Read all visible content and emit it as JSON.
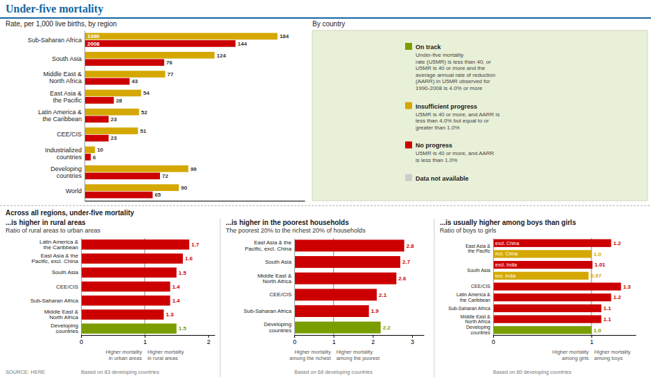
{
  "chart_data": [
    {
      "type": "bar",
      "orientation": "horizontal",
      "title": "Under-five mortality",
      "subtitle": "Rate, per 1,000 live births, by region",
      "categories": [
        "Sub-Saharan Africa",
        "South Asia",
        "Middle East &\nNorth Africa",
        "East Asia &\nthe Pacific",
        "Latin America &\nthe Caribbean",
        "CEE/CIS",
        "Industrialized\ncountries",
        "Developing\ncountries",
        "World"
      ],
      "series": [
        {
          "name": "1990",
          "color": "#d4a800",
          "values": [
            184,
            124,
            77,
            54,
            52,
            51,
            10,
            99,
            90
          ]
        },
        {
          "name": "2008",
          "color": "#cc0000",
          "values": [
            144,
            76,
            43,
            28,
            23,
            23,
            6,
            72,
            65
          ]
        }
      ],
      "xlim": [
        0,
        210
      ],
      "data_labels": true,
      "tick_labels": "y",
      "annotations": [
        "SOURCE: HERE"
      ]
    },
    {
      "type": "map",
      "title": "By country",
      "series": [
        {
          "name": "On track",
          "color": "#7a9e00"
        },
        {
          "name": "Insufficient progress",
          "color": "#d4a800"
        },
        {
          "name": "No progress",
          "color": "#cc0000"
        },
        {
          "name": "Data not available",
          "color": "#cccccc"
        }
      ],
      "annotations": [
        "Under-five mortality\nrate (U5MR) is less than 40, or\nU5MR is 40 or more and the\naverage annual rate of reduction\n(AARR) in U5MR observed for\n1990-2008 is 4.0% or more",
        "U5MR is 40 or more, and AARR is\nless than 4.0% but equal to or\ngreater than 1.0%",
        "U5MR is 40 or more, and AARR\nis less than 1.0%"
      ]
    },
    {
      "type": "bar",
      "orientation": "horizontal",
      "title": "...is higher in rural areas",
      "subtitle": "Ratio of rural areas to urban areas",
      "categories": [
        "Latin America &\nthe Caribbean",
        "East Asia & the\nPacific, excl. China",
        "South Asia",
        "CEE/CIS",
        "Sub-Saharan Africa",
        "Middle East &\nNorth Africa",
        "Developing\ncountries"
      ],
      "values": [
        1.7,
        1.6,
        1.5,
        1.4,
        1.4,
        1.3,
        1.5
      ],
      "colors": [
        "#cc0000",
        "#cc0000",
        "#cc0000",
        "#cc0000",
        "#cc0000",
        "#cc0000",
        "#7a9e00"
      ],
      "xlim": [
        0,
        2.1
      ],
      "xticks": [
        0,
        1,
        2
      ],
      "data_labels": true,
      "reference_line": 1,
      "annotations": [
        "Across all regions, under-five mortality",
        "Higher mortality\nin urban areas",
        "Higher mortality\nin rural areas",
        "Based on 83 developing countries"
      ]
    },
    {
      "type": "bar",
      "orientation": "horizontal",
      "title": "...is higher in the poorest households",
      "subtitle": "The poorest 20% to the richest 20% of households",
      "categories": [
        "East Asia & the\nPacific, excl. China",
        "South Asia",
        "Middle East &\nNorth Africa",
        "CEE/CIS",
        "Sub-Saharan Africa",
        "Developing\ncountries"
      ],
      "values": [
        2.8,
        2.7,
        2.6,
        2.1,
        1.9,
        2.2
      ],
      "colors": [
        "#cc0000",
        "#cc0000",
        "#cc0000",
        "#cc0000",
        "#cc0000",
        "#7a9e00"
      ],
      "xlim": [
        0,
        3.3
      ],
      "xticks": [
        0,
        1,
        2,
        3
      ],
      "data_labels": true,
      "reference_line": 1,
      "annotations": [
        "Higher mortality\namong the richest",
        "Higher mortality\namong the poorest",
        "Based on 68 developing countries"
      ]
    },
    {
      "type": "bar",
      "orientation": "horizontal",
      "title": "...is usually higher among boys than girls",
      "subtitle": "Ratio of boys to girls",
      "categories": [
        "East Asia &\nthe Pacific",
        null,
        "South Asia",
        null,
        "CEE/CIS",
        "Latin America &\nthe Caribbean",
        "Sub-Saharan Africa",
        "Middle East &\nNorth Africa",
        "Developing\ncountries"
      ],
      "values": [
        1.2,
        1.0,
        1.01,
        0.97,
        1.3,
        1.2,
        1.1,
        1.1,
        1.0
      ],
      "value_labels": [
        "1.2",
        "1.0",
        "1.01",
        "0.97",
        "1.3",
        "1.2",
        "1.1",
        "1.1",
        "1.0"
      ],
      "sublabels": [
        "excl. China",
        "incl. China",
        "excl. India",
        "incl. India",
        null,
        null,
        null,
        null,
        null
      ],
      "colors": [
        "#cc0000",
        "#d4a800",
        "#cc0000",
        "#d4a800",
        "#cc0000",
        "#cc0000",
        "#cc0000",
        "#cc0000",
        "#7a9e00"
      ],
      "xlim": [
        0,
        1.45
      ],
      "xticks": [
        0,
        1
      ],
      "data_labels": true,
      "reference_line": 1,
      "annotations": [
        "Higher mortality\namong girls",
        "Higher mortality\namong boys",
        "Based on 80 developing countries"
      ]
    }
  ]
}
